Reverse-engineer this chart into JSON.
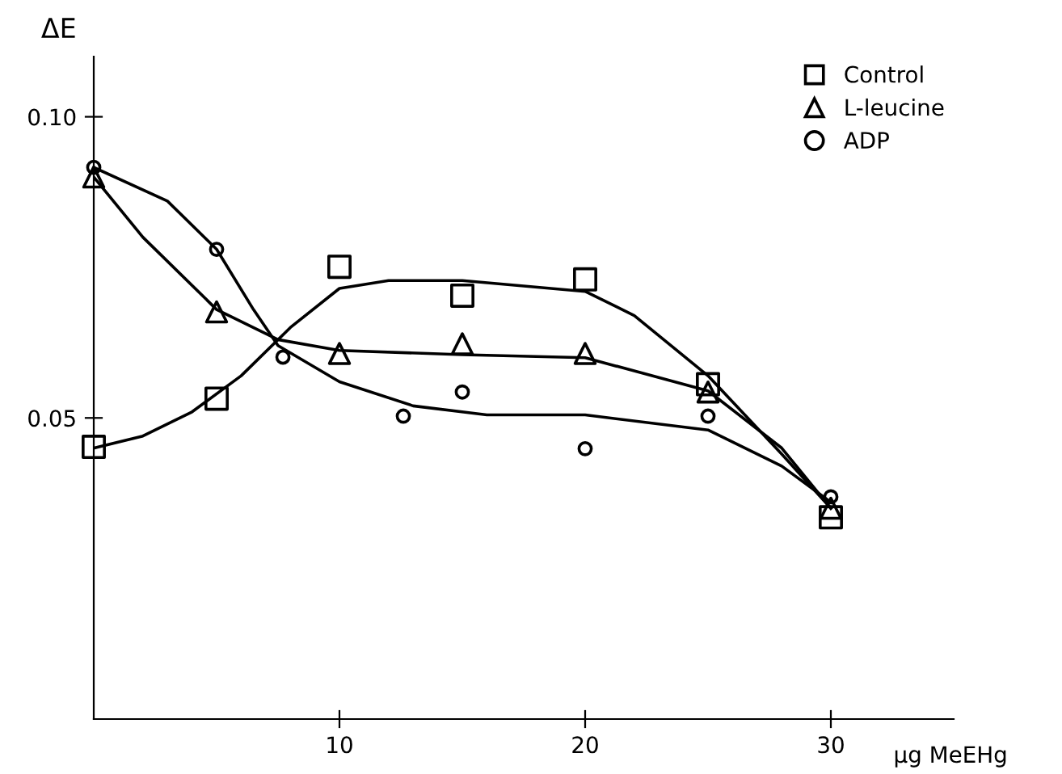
{
  "chart_data": {
    "type": "scatter",
    "xlabel": "µg MeEHg",
    "ylabel": "ΔE",
    "xlim": [
      0,
      35
    ],
    "ylim": [
      0,
      0.11
    ],
    "xticks": [
      10,
      20,
      30
    ],
    "yticks": [
      0.05,
      {
        "value": 0.1,
        "label": "0.10"
      }
    ],
    "grid": false,
    "legend": "top right",
    "series": [
      {
        "name": "Control",
        "color": "#000000",
        "marker": "square",
        "x": [
          0,
          5,
          10,
          15,
          20,
          25,
          30
        ],
        "values": [
          0.0452,
          0.0532,
          0.0751,
          0.0703,
          0.073,
          0.0556,
          0.0335
        ]
      },
      {
        "name": "L-leucine",
        "color": "#000000",
        "marker": "triangle",
        "x": [
          0,
          5,
          10,
          15,
          20,
          25,
          30
        ],
        "values": [
          0.09,
          0.0676,
          0.0607,
          0.0623,
          0.0607,
          0.0543,
          0.035
        ]
      },
      {
        "name": "ADP",
        "color": "#000000",
        "marker": "circle",
        "x": [
          0,
          5,
          7.7,
          12.6,
          15,
          20,
          25,
          30
        ],
        "values": [
          0.0916,
          0.078,
          0.0601,
          0.0503,
          0.0543,
          0.0449,
          0.0503,
          0.0369
        ]
      },
      {
        "type": "line",
        "color": "#000000",
        "marker": "none",
        "line_style": "solid",
        "x": [
          0,
          2,
          4,
          6,
          8,
          10,
          12,
          15,
          20,
          22,
          25,
          28,
          30
        ],
        "values": [
          0.045,
          0.047,
          0.051,
          0.057,
          0.065,
          0.0715,
          0.0728,
          0.0728,
          0.071,
          0.067,
          0.057,
          0.044,
          0.035
        ]
      },
      {
        "type": "line",
        "color": "#000000",
        "marker": "none",
        "line_style": "solid",
        "x": [
          0,
          2,
          5,
          7.5,
          10,
          15,
          20,
          25,
          28,
          30
        ],
        "values": [
          0.09,
          0.08,
          0.068,
          0.063,
          0.0612,
          0.0605,
          0.06,
          0.0545,
          0.045,
          0.035
        ]
      },
      {
        "type": "line",
        "color": "#000000",
        "marker": "none",
        "line_style": "solid",
        "x": [
          0,
          3,
          5,
          6.5,
          7.5,
          10,
          13,
          16,
          20,
          25,
          28,
          30
        ],
        "values": [
          0.0916,
          0.086,
          0.078,
          0.068,
          0.062,
          0.056,
          0.052,
          0.0505,
          0.0505,
          0.048,
          0.042,
          0.036
        ]
      }
    ]
  }
}
